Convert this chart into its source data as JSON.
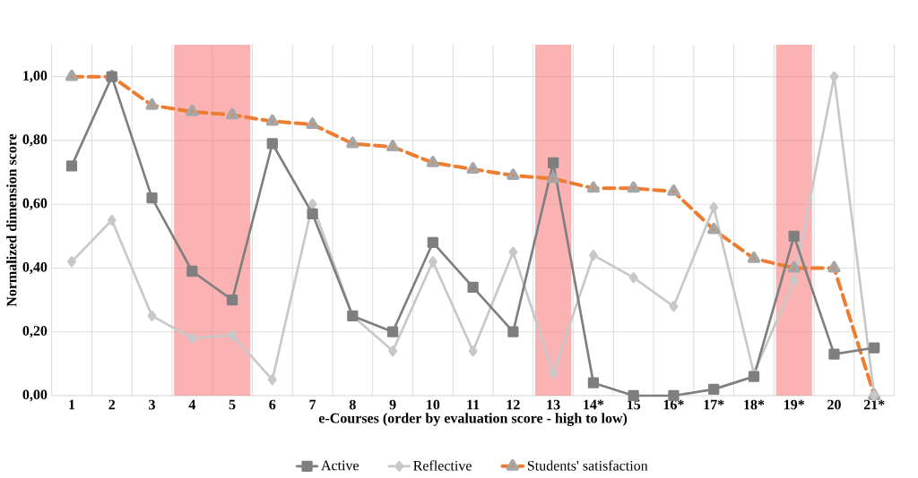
{
  "chart_data": {
    "type": "line",
    "xlabel": "e-Courses (order by evaluation score - high to low)",
    "ylabel": "Normalized dimension score",
    "categories": [
      "1",
      "2",
      "3",
      "4",
      "5",
      "6",
      "7",
      "8",
      "9",
      "10",
      "11",
      "12",
      "13",
      "14*",
      "15",
      "16*",
      "17*",
      "18*",
      "19*",
      "20",
      "21*"
    ],
    "series": [
      {
        "name": "Active",
        "color": "#7f7f7f",
        "marker": "square",
        "line_style": "solid",
        "values": [
          0.72,
          1.0,
          0.62,
          0.39,
          0.3,
          0.79,
          0.57,
          0.25,
          0.2,
          0.48,
          0.34,
          0.2,
          0.73,
          0.04,
          0.0,
          0.0,
          0.02,
          0.06,
          0.5,
          0.13,
          0.15
        ]
      },
      {
        "name": "Reflective",
        "color": "#c8c8c8",
        "marker": "diamond",
        "line_style": "solid",
        "values": [
          0.42,
          0.55,
          0.25,
          0.18,
          0.19,
          0.05,
          0.6,
          0.25,
          0.14,
          0.42,
          0.14,
          0.45,
          0.07,
          0.44,
          0.37,
          0.28,
          0.59,
          0.07,
          0.36,
          1.0,
          0.0
        ]
      },
      {
        "name": "Students' satisfaction",
        "color": "#ed7d31",
        "marker": "triangle",
        "line_style": "dashed",
        "values": [
          1.0,
          1.0,
          0.91,
          0.89,
          0.88,
          0.86,
          0.85,
          0.79,
          0.78,
          0.73,
          0.71,
          0.69,
          0.68,
          0.65,
          0.65,
          0.64,
          0.52,
          0.43,
          0.4,
          0.4,
          0.0
        ]
      }
    ],
    "ylim": [
      0,
      1.1
    ],
    "yticks": [
      {
        "value": 0,
        "label": "0,00"
      },
      {
        "value": 0.2,
        "label": "0,20"
      },
      {
        "value": 0.4,
        "label": "0,40"
      },
      {
        "value": 0.6,
        "label": "0,60"
      },
      {
        "value": 0.8,
        "label": "0,80"
      },
      {
        "value": 1.0,
        "label": "1,00"
      }
    ],
    "bands": [
      {
        "axis": "x",
        "from": "4",
        "to": "5",
        "color": "#f77f7f"
      },
      {
        "axis": "x",
        "from": "13",
        "to": "13",
        "color": "#f77f7f"
      },
      {
        "axis": "x",
        "from": "19*",
        "to": "19*",
        "color": "#f77f7f"
      }
    ],
    "grid": true,
    "legend": "bottom"
  }
}
